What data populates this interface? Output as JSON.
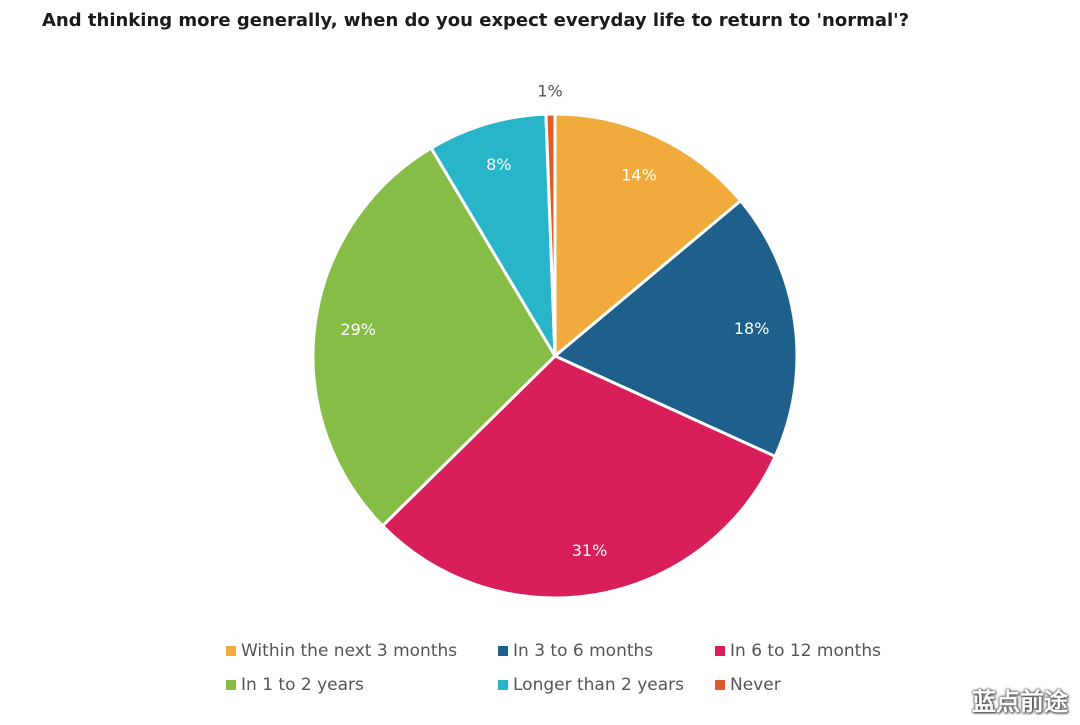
{
  "chart_data": {
    "type": "pie",
    "title": "And thinking more generally, when do you expect everyday life to return to 'normal'?",
    "slices": [
      {
        "name": "Within the next 3 months",
        "value": 14,
        "label": "14%",
        "color": "#f0ab3c"
      },
      {
        "name": "In 3 to 6 months",
        "value": 18,
        "label": "18%",
        "color": "#1f5f8b"
      },
      {
        "name": "In 6 to 12 months",
        "value": 31,
        "label": "31%",
        "color": "#d81f5a"
      },
      {
        "name": "In 1 to 2 years",
        "value": 29,
        "label": "29%",
        "color": "#86bd47"
      },
      {
        "name": "Longer than 2 years",
        "value": 8,
        "label": "8%",
        "color": "#29b5c9"
      },
      {
        "name": "Never",
        "value": 0.6,
        "label": "1%",
        "color": "#e05a2b"
      }
    ],
    "legend_position": "bottom"
  },
  "watermark": {
    "text": "蓝点前途",
    "icon": "weibo-icon"
  }
}
